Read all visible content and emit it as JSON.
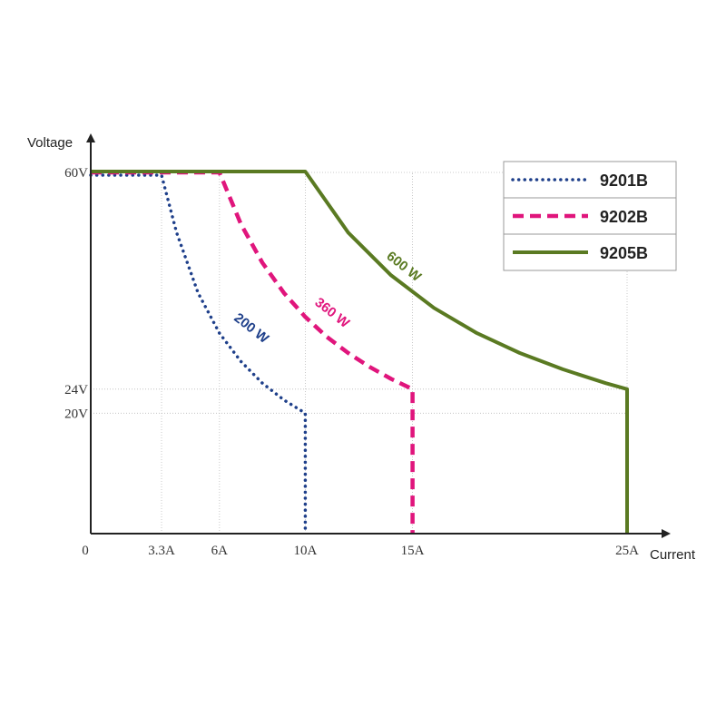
{
  "chart_data": {
    "type": "line",
    "title": "",
    "xlabel": "Current",
    "ylabel": "Voltage",
    "xlim": [
      0,
      25
    ],
    "ylim": [
      0,
      60
    ],
    "x_ticks": [
      {
        "value": 0,
        "label": "0"
      },
      {
        "value": 3.3,
        "label": "3.3A"
      },
      {
        "value": 6,
        "label": "6A"
      },
      {
        "value": 10,
        "label": "10A"
      },
      {
        "value": 15,
        "label": "15A"
      },
      {
        "value": 25,
        "label": "25A"
      }
    ],
    "y_ticks": [
      {
        "value": 60,
        "label": "60V"
      },
      {
        "value": 24,
        "label": "24V"
      },
      {
        "value": 20,
        "label": "20V"
      }
    ],
    "grid": "dotted guides at tick values",
    "legend_position": "top-right",
    "series": [
      {
        "name": "9201B",
        "color": "#1e3f8a",
        "style": "dotted",
        "power_label": "200 W",
        "points": [
          [
            0,
            60
          ],
          [
            3.3,
            60
          ],
          [
            4,
            50
          ],
          [
            5,
            40
          ],
          [
            6,
            33.3
          ],
          [
            7,
            28.6
          ],
          [
            8,
            25
          ],
          [
            9,
            22.2
          ],
          [
            10,
            20
          ],
          [
            10,
            0
          ]
        ]
      },
      {
        "name": "9202B",
        "color": "#e0157c",
        "style": "dashed",
        "power_label": "360 W",
        "points": [
          [
            0,
            60
          ],
          [
            6,
            60
          ],
          [
            7,
            51.4
          ],
          [
            8,
            45
          ],
          [
            9,
            40
          ],
          [
            10,
            36
          ],
          [
            11,
            32.7
          ],
          [
            12,
            30
          ],
          [
            13,
            27.7
          ],
          [
            14,
            25.7
          ],
          [
            15,
            24
          ],
          [
            15,
            0
          ]
        ]
      },
      {
        "name": "9205B",
        "color": "#5a7a22",
        "style": "solid",
        "power_label": "600 W",
        "points": [
          [
            0,
            60
          ],
          [
            10,
            60
          ],
          [
            12,
            50
          ],
          [
            14,
            42.9
          ],
          [
            16,
            37.5
          ],
          [
            18,
            33.3
          ],
          [
            20,
            30
          ],
          [
            22,
            27.3
          ],
          [
            24,
            25
          ],
          [
            25,
            24
          ],
          [
            25,
            0
          ]
        ]
      }
    ]
  }
}
